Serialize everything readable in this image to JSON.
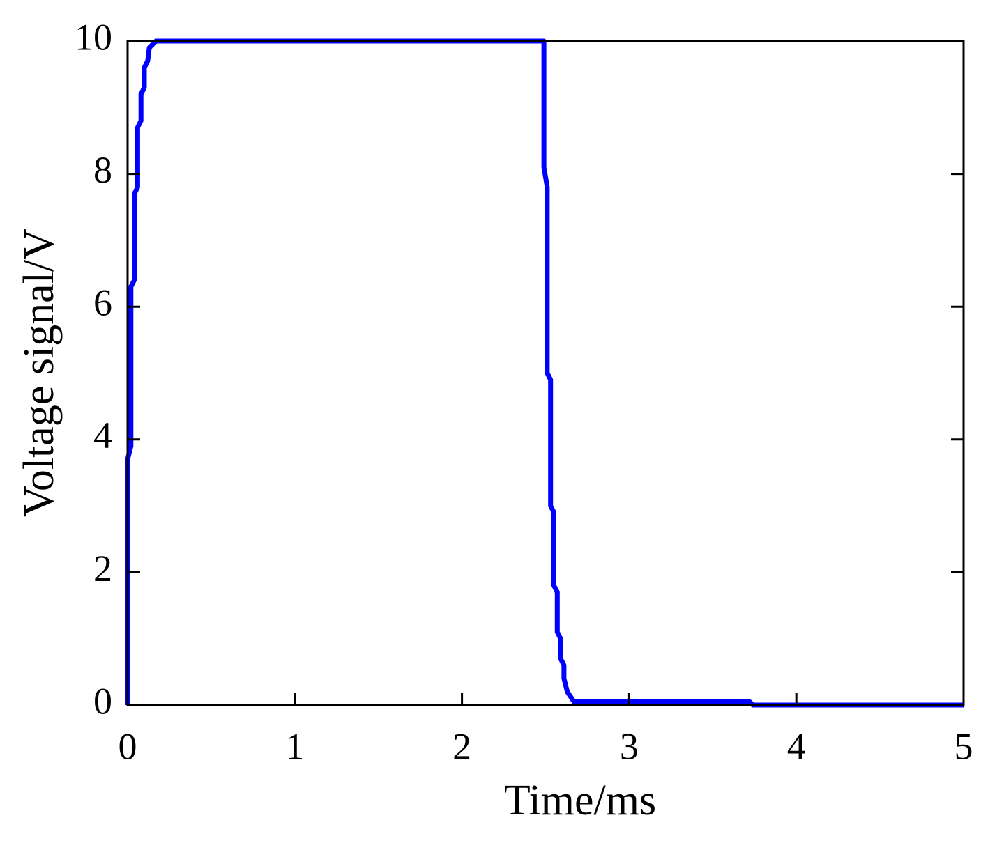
{
  "chart_data": {
    "type": "line",
    "xlabel": "Time/ms",
    "ylabel": "Voltage signal/V",
    "x": [
      0,
      0,
      0.02,
      0.02,
      0.04,
      0.04,
      0.06,
      0.06,
      0.08,
      0.08,
      0.1,
      0.1,
      0.12,
      0.13,
      0.17,
      2.49,
      2.49,
      2.51,
      2.51,
      2.53,
      2.53,
      2.55,
      2.55,
      2.57,
      2.57,
      2.59,
      2.59,
      2.61,
      2.61,
      2.63,
      2.67,
      3.72,
      3.74,
      5
    ],
    "series": [
      {
        "color": "#0000ff",
        "values": [
          0,
          3.7,
          3.9,
          6.3,
          6.4,
          7.7,
          7.8,
          8.7,
          8.8,
          9.2,
          9.3,
          9.6,
          9.7,
          9.9,
          10,
          10,
          8.1,
          7.8,
          5.0,
          4.9,
          3.0,
          2.9,
          1.8,
          1.7,
          1.1,
          1.0,
          0.7,
          0.6,
          0.4,
          0.2,
          0.05,
          0.05,
          0,
          0
        ]
      }
    ],
    "xlim": [
      0,
      5
    ],
    "xticks": [
      0,
      1,
      2,
      3,
      4,
      5
    ],
    "ylim": [
      0,
      10
    ],
    "yticks": [
      0,
      2,
      4,
      6,
      8,
      10
    ],
    "grid": false
  }
}
